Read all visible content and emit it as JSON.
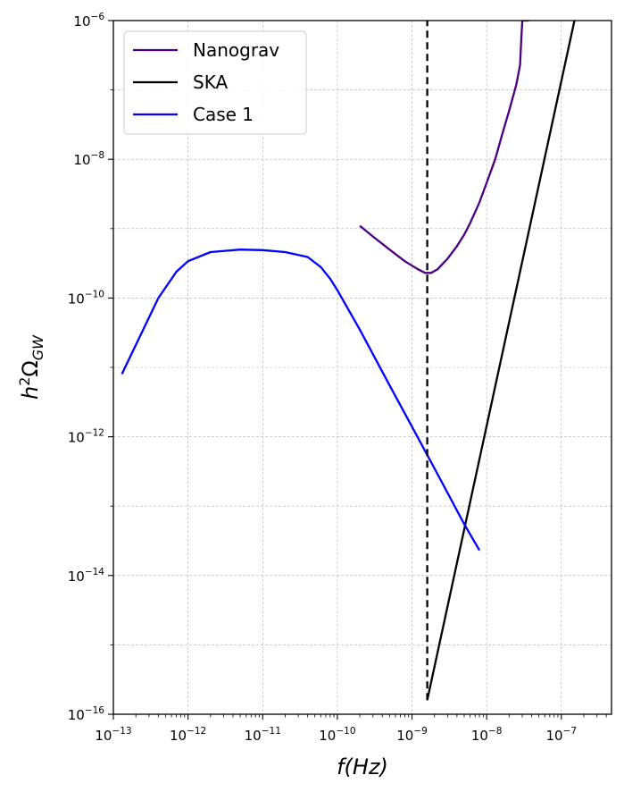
{
  "chart_data": {
    "type": "line",
    "title": "",
    "xlabel": "f(Hz)",
    "ylabel": "h²Ω_GW",
    "xscale": "log",
    "yscale": "log",
    "xlim": [
      1e-13,
      4.7e-07
    ],
    "ylim": [
      1e-16,
      1e-06
    ],
    "grid": true,
    "legend_position": "top-left",
    "x_ticks": [
      {
        "value": 1e-13,
        "base": "10",
        "exp": "−13"
      },
      {
        "value": 1e-12,
        "base": "10",
        "exp": "−12"
      },
      {
        "value": 1e-11,
        "base": "10",
        "exp": "−11"
      },
      {
        "value": 1e-10,
        "base": "10",
        "exp": "−10"
      },
      {
        "value": 1e-09,
        "base": "10",
        "exp": "−9"
      },
      {
        "value": 1e-08,
        "base": "10",
        "exp": "−8"
      },
      {
        "value": 1e-07,
        "base": "10",
        "exp": "−7"
      }
    ],
    "y_ticks": [
      {
        "value": 1e-16,
        "base": "10",
        "exp": "−16"
      },
      {
        "value": 1e-14,
        "base": "10",
        "exp": "−14"
      },
      {
        "value": 1e-12,
        "base": "10",
        "exp": "−12"
      },
      {
        "value": 1e-10,
        "base": "10",
        "exp": "−10"
      },
      {
        "value": 1e-08,
        "base": "10",
        "exp": "−8"
      },
      {
        "value": 1e-06,
        "base": "10",
        "exp": "−6"
      }
    ],
    "series": [
      {
        "name": "Nanograv",
        "color": "#4b0082",
        "dash": "solid",
        "x": [
          2e-10,
          3e-10,
          5e-10,
          8e-10,
          1.2e-09,
          1.5e-09,
          1.8e-09,
          2.2e-09,
          3e-09,
          4e-09,
          5e-09,
          6e-09,
          8e-09,
          1e-08,
          1.3e-08,
          1.6e-08,
          2e-08,
          2.5e-08,
          2.8e-08,
          2.9e-08,
          3e-08,
          3.1e-08,
          3.4e-08,
          3.6e-08,
          3.7e-08
        ],
        "y": [
          1.1e-09,
          7.7e-10,
          5e-10,
          3.4e-10,
          2.6e-10,
          2.3e-10,
          2.3e-10,
          2.6e-10,
          3.7e-10,
          5.6e-10,
          8.2e-10,
          1.2e-09,
          2.4e-09,
          4.6e-09,
          1e-08,
          2.2e-08,
          5e-08,
          1.2e-07,
          2.3e-07,
          5e-07,
          1e-06,
          1e-06,
          1e-06,
          1e-06,
          1.2e-06
        ]
      },
      {
        "name": "SKA",
        "color": "#000000",
        "dash": "solid",
        "x": [
          1.6e-09,
          1.5e-07
        ],
        "y": [
          1.6e-16,
          1e-06
        ]
      },
      {
        "name": "Case 1",
        "color": "#0000ff",
        "dash": "solid",
        "x": [
          1.3e-13,
          4e-13,
          7e-13,
          1e-12,
          2e-12,
          5e-12,
          1e-11,
          2e-11,
          4e-11,
          6e-11,
          8e-11,
          1e-10,
          2e-10,
          5e-10,
          1e-09,
          2e-09,
          5e-09,
          8e-09
        ],
        "y": [
          8e-12,
          1e-10,
          2.4e-10,
          3.4e-10,
          4.6e-10,
          5e-10,
          4.9e-10,
          4.6e-10,
          3.9e-10,
          2.8e-10,
          1.9e-10,
          1.3e-10,
          3.5e-11,
          5.5e-12,
          1.4e-12,
          3.5e-13,
          5.5e-14,
          2.3e-14
        ]
      },
      {
        "name": "",
        "color": "#000000",
        "dash": "dashed",
        "x": [
          1.6e-09,
          1.6e-09
        ],
        "y": [
          1.6e-16,
          1e-06
        ]
      }
    ]
  }
}
